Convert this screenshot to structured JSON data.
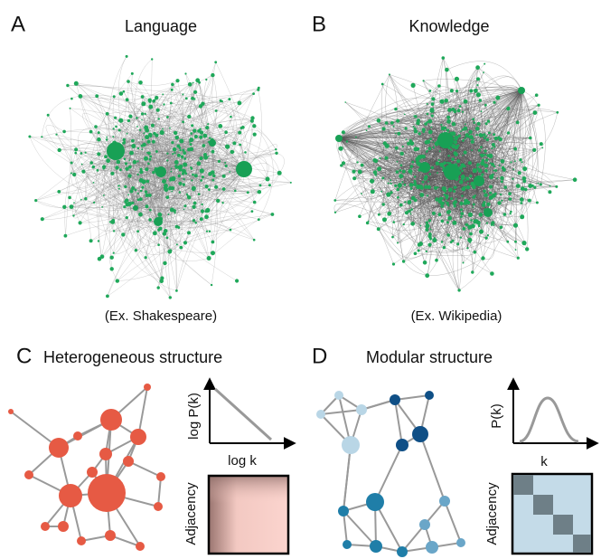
{
  "panels": [
    {
      "letter": "A",
      "title": "Language",
      "caption": "(Ex. Shakespeare)"
    },
    {
      "letter": "B",
      "title": "Knowledge",
      "caption": "(Ex. Wikipedia)"
    },
    {
      "letter": "C",
      "title": "Heterogeneous structure",
      "y_label": "log P(k)",
      "x_label": "log k",
      "matrix_label": "Adjacency"
    },
    {
      "letter": "D",
      "title": "Modular structure",
      "y_label": "P(k)",
      "x_label": "k",
      "matrix_label": "Adjacency"
    }
  ]
}
